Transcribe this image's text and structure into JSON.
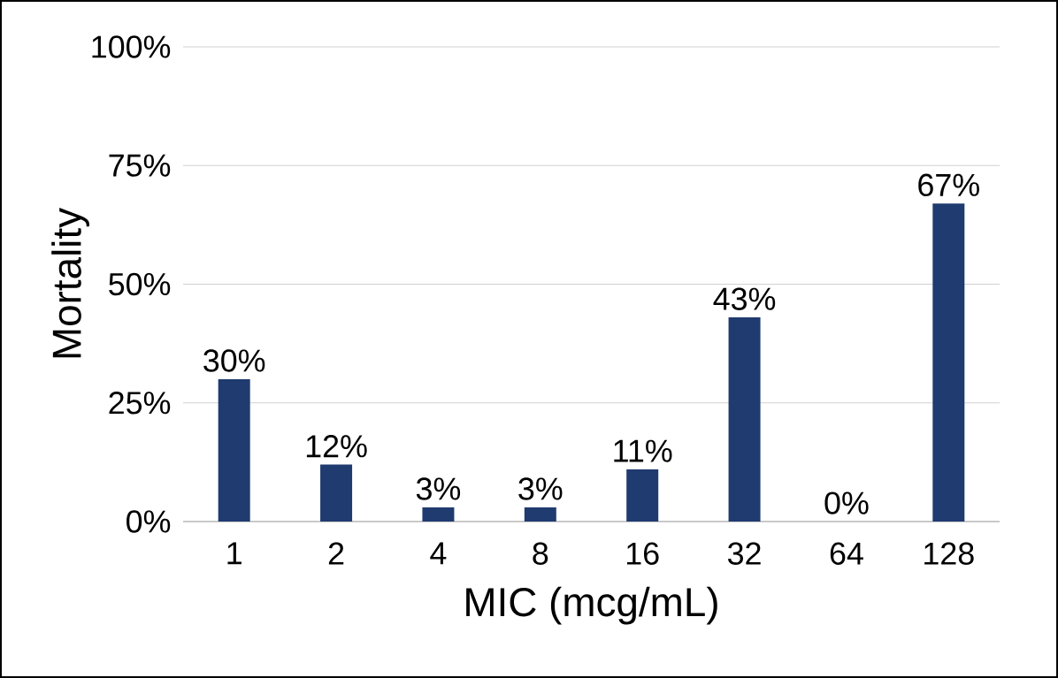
{
  "chart_data": {
    "type": "bar",
    "xlabel": "MIC (mcg/mL)",
    "ylabel": "Mortality",
    "categories": [
      "1",
      "2",
      "4",
      "8",
      "16",
      "32",
      "64",
      "128"
    ],
    "values": [
      30,
      12,
      3,
      3,
      11,
      43,
      0,
      67
    ],
    "value_labels": [
      "30%",
      "12%",
      "3%",
      "3%",
      "11%",
      "43%",
      "0%",
      "67%"
    ],
    "color": "#1f3b6f",
    "ylim": [
      0,
      100
    ],
    "yticks": [
      {
        "value": 0,
        "label": "0%"
      },
      {
        "value": 25,
        "label": "25%"
      },
      {
        "value": 50,
        "label": "50%"
      },
      {
        "value": 75,
        "label": "75%"
      },
      {
        "value": 100,
        "label": "100%"
      }
    ],
    "grid": "y"
  }
}
